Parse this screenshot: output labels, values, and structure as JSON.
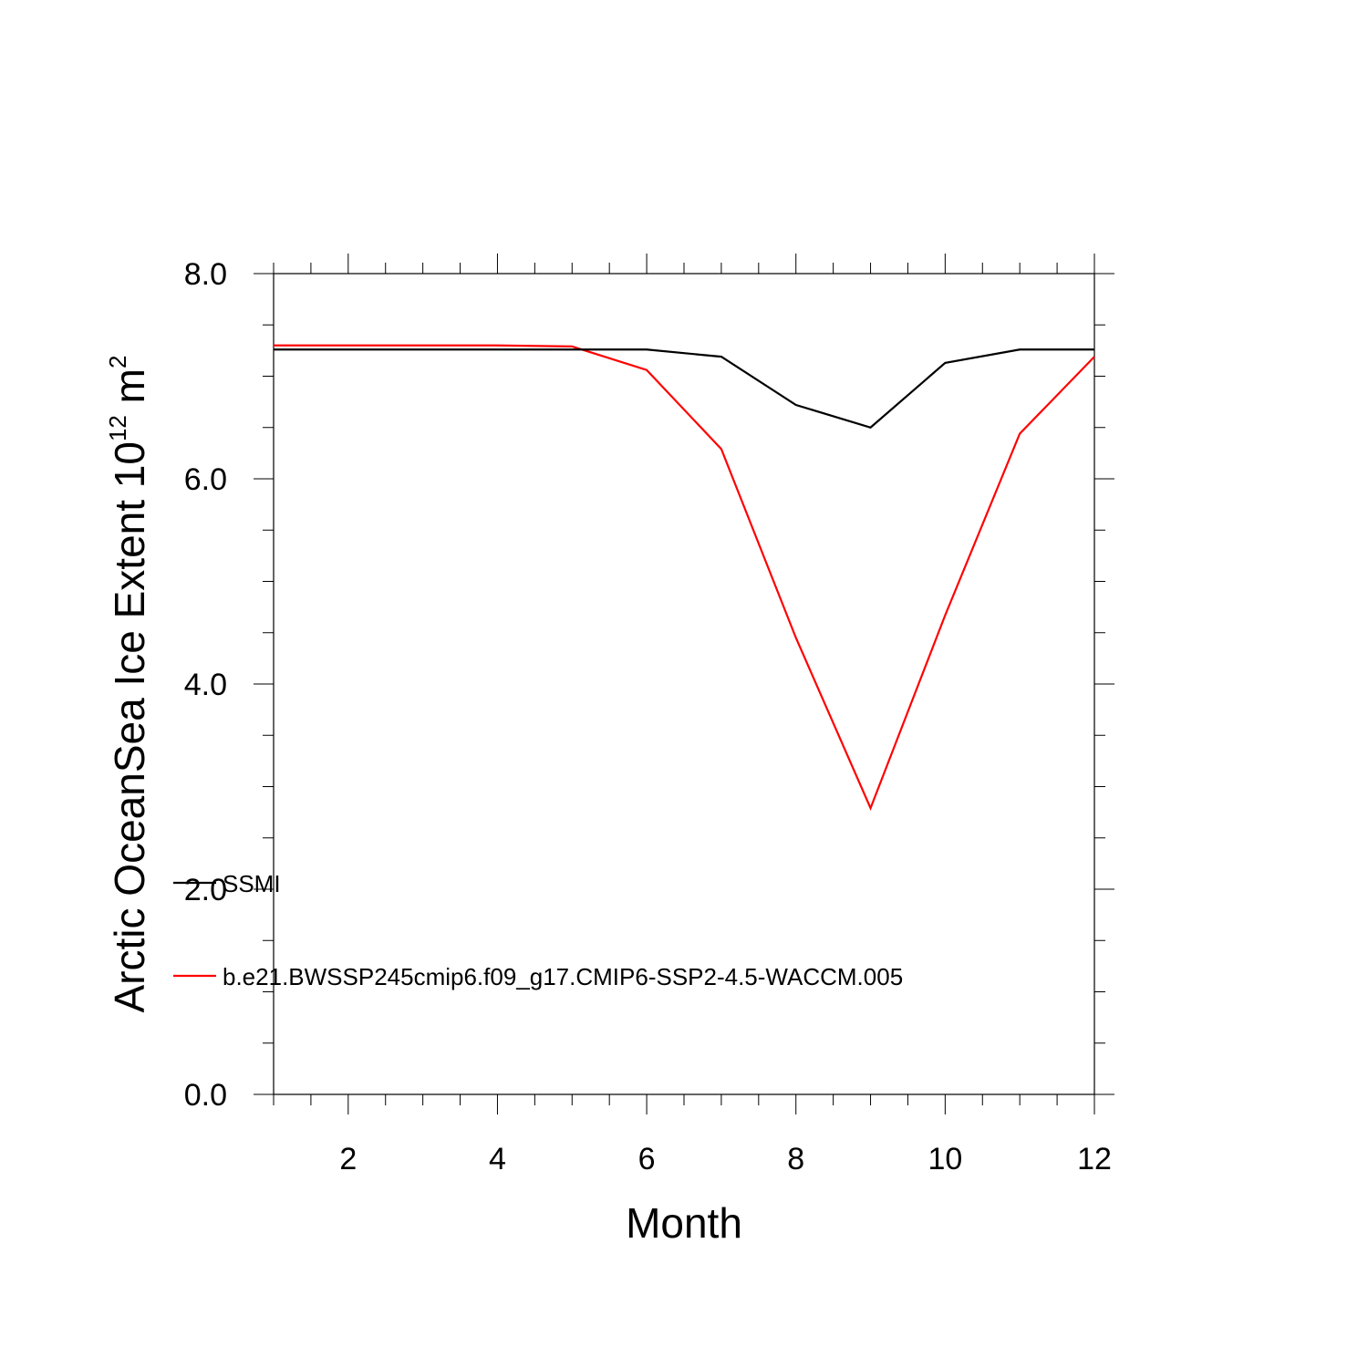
{
  "chart_data": {
    "type": "line",
    "title": "",
    "xlabel": "Month",
    "ylabel_main": "Arctic OceanSea Ice Extent 10",
    "ylabel_sup": "12",
    "ylabel_unit": " m",
    "ylabel_unit_sup": "2",
    "xlim": [
      1,
      12
    ],
    "ylim": [
      0,
      8
    ],
    "x_ticks": [
      2,
      4,
      6,
      8,
      10,
      12
    ],
    "x_tick_labels": [
      "2",
      "4",
      "6",
      "8",
      "10",
      "12"
    ],
    "y_ticks": [
      0,
      2,
      4,
      6,
      8
    ],
    "y_tick_labels": [
      "0.0",
      "2.0",
      "4.0",
      "6.0",
      "8.0"
    ],
    "x_minor_step": 0.5,
    "y_minor_step": 0.5,
    "grid": false,
    "legend_placement": "lower-left",
    "x": [
      1,
      2,
      3,
      4,
      5,
      6,
      7,
      8,
      9,
      10,
      11,
      12
    ],
    "series": [
      {
        "name": "SSMI",
        "color": "#000000",
        "values": [
          7.26,
          7.26,
          7.26,
          7.26,
          7.26,
          7.26,
          7.19,
          6.72,
          6.5,
          7.13,
          7.26,
          7.26
        ]
      },
      {
        "name": "b.e21.BWSSP245cmip6.f09_g17.CMIP6-SSP2-4.5-WACCM.005",
        "color": "#ff0000",
        "values": [
          7.3,
          7.3,
          7.3,
          7.3,
          7.29,
          7.06,
          6.29,
          4.45,
          2.79,
          4.67,
          6.44,
          7.19
        ]
      }
    ]
  }
}
